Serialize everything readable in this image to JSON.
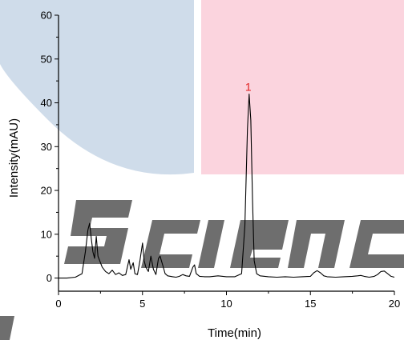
{
  "colors": {
    "watermark_blue": "#cfdcea",
    "watermark_pink": "#fbd4de",
    "watermark_gray": "#6e6e6e",
    "trace": "#000000",
    "peak_label": "#e02020"
  },
  "chart_data": {
    "type": "line",
    "xlabel": "Time(min)",
    "ylabel": "Intensity(mAU)",
    "xlim": [
      0,
      20
    ],
    "ylim": [
      -3,
      60
    ],
    "x_ticks": [
      "0",
      "5",
      "10",
      "15",
      "20"
    ],
    "y_ticks": [
      "0",
      "10",
      "20",
      "30",
      "40",
      "50",
      "60"
    ],
    "grid": false,
    "legend": "none",
    "annotations": [
      {
        "text": "1",
        "x": 11.4,
        "y": 42
      }
    ],
    "series": [
      {
        "x": [
          0,
          0.5,
          1.0,
          1.4,
          1.6,
          1.75,
          1.85,
          1.95,
          2.05,
          2.15,
          2.25,
          2.35,
          2.45,
          2.6,
          2.8,
          3.0,
          3.2,
          3.4,
          3.6,
          3.8,
          4.0,
          4.2,
          4.3,
          4.45,
          4.55,
          4.7,
          4.85,
          5.0,
          5.1,
          5.2,
          5.35,
          5.5,
          5.65,
          5.8,
          5.95,
          6.05,
          6.2,
          6.35,
          6.5,
          6.8,
          7.0,
          7.2,
          7.4,
          7.6,
          7.8,
          8.0,
          8.1,
          8.2,
          8.4,
          8.7,
          9.0,
          9.5,
          10.0,
          10.5,
          10.9,
          11.1,
          11.25,
          11.35,
          11.45,
          11.55,
          11.65,
          11.8,
          12.0,
          12.5,
          13.0,
          13.5,
          14.0,
          14.5,
          15.0,
          15.2,
          15.4,
          15.6,
          15.8,
          16.0,
          16.5,
          17.0,
          17.5,
          17.8,
          18.0,
          18.2,
          18.5,
          18.8,
          19.0,
          19.2,
          19.4,
          19.6,
          19.8,
          20.0
        ],
        "y": [
          0,
          0,
          0.2,
          1,
          6,
          11,
          12.5,
          9,
          6,
          4.5,
          9.5,
          5,
          4,
          2.5,
          1.5,
          1,
          1.8,
          0.8,
          1.2,
          0.6,
          0.8,
          4.2,
          2,
          3.5,
          1,
          0.8,
          4,
          8,
          4,
          2.5,
          1.5,
          5,
          2,
          0.8,
          4.5,
          5,
          3,
          1,
          0.5,
          0.3,
          0.2,
          0.4,
          0.8,
          0.5,
          0.4,
          2.5,
          3,
          1,
          0.4,
          0.3,
          0.3,
          0.5,
          0.3,
          0.3,
          1,
          12,
          34,
          42,
          36,
          18,
          4,
          1,
          0.5,
          0.3,
          0.2,
          0.3,
          0.2,
          0.3,
          0.4,
          1.2,
          1.7,
          1.2,
          0.5,
          0.3,
          0.2,
          0.3,
          0.4,
          0.5,
          0.6,
          0.4,
          0.2,
          0.4,
          0.8,
          1.5,
          1.6,
          1.0,
          0.4,
          0.2
        ]
      }
    ]
  }
}
